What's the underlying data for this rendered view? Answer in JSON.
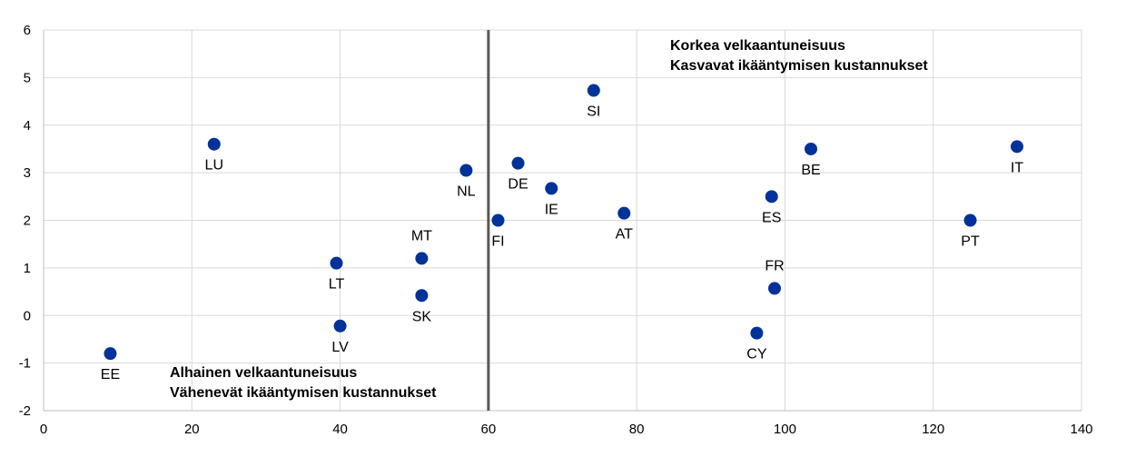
{
  "chart_data": {
    "type": "scatter",
    "title": "",
    "xlabel": "",
    "ylabel": "",
    "xlim": [
      0,
      140
    ],
    "ylim": [
      -2,
      6
    ],
    "x_ticks": [
      0,
      20,
      40,
      60,
      80,
      100,
      120,
      140
    ],
    "y_ticks": [
      -2,
      -1,
      0,
      1,
      2,
      3,
      4,
      5,
      6
    ],
    "grid": true,
    "marker_color": "#003299",
    "divider_color": "#595959",
    "vertical_divider_x": 60,
    "points": [
      {
        "label": "EE",
        "x": 9,
        "y": -0.8
      },
      {
        "label": "LU",
        "x": 23,
        "y": 3.6
      },
      {
        "label": "LT",
        "x": 39.5,
        "y": 1.1
      },
      {
        "label": "LV",
        "x": 40,
        "y": -0.22
      },
      {
        "label": "MT",
        "x": 51,
        "y": 1.2
      },
      {
        "label": "SK",
        "x": 51,
        "y": 0.42
      },
      {
        "label": "NL",
        "x": 57,
        "y": 3.05
      },
      {
        "label": "FI",
        "x": 61.3,
        "y": 2.0
      },
      {
        "label": "DE",
        "x": 64,
        "y": 3.2
      },
      {
        "label": "IE",
        "x": 68.5,
        "y": 2.67
      },
      {
        "label": "SI",
        "x": 74.2,
        "y": 4.73
      },
      {
        "label": "AT",
        "x": 78.3,
        "y": 2.15
      },
      {
        "label": "CY",
        "x": 96.2,
        "y": -0.37
      },
      {
        "label": "ES",
        "x": 98.2,
        "y": 2.5
      },
      {
        "label": "FR",
        "x": 98.6,
        "y": 0.57
      },
      {
        "label": "BE",
        "x": 103.5,
        "y": 3.5
      },
      {
        "label": "PT",
        "x": 125,
        "y": 2.0
      },
      {
        "label": "IT",
        "x": 131.3,
        "y": 3.55
      }
    ],
    "annotations": {
      "high": {
        "line1": "Korkea velkaantuneisuus",
        "line2": "Kasvavat ikääntymisen kustannukset"
      },
      "low": {
        "line1": "Alhainen velkaantuneisuus",
        "line2": "Vähenevät ikääntymisen kustannukset"
      }
    }
  }
}
